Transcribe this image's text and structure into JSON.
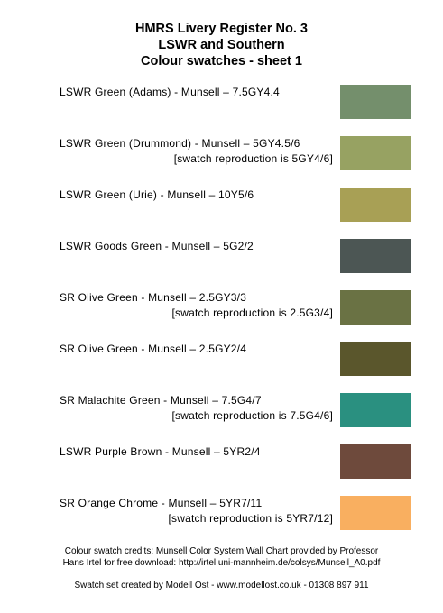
{
  "header": {
    "line1": "HMRS Livery Register No. 3",
    "line2": "LSWR and Southern",
    "line3": "Colour swatches - sheet 1"
  },
  "swatches": [
    {
      "label": "LSWR Green (Adams) -  Munsell – 7.5GY4.4",
      "note": "",
      "color": "#748F6C"
    },
    {
      "label": "LSWR Green (Drummond) -  Munsell – 5GY4.5/6",
      "note": "[swatch reproduction is 5GY4/6]",
      "color": "#97A262"
    },
    {
      "label": "LSWR Green (Urie) -  Munsell – 10Y5/6",
      "note": "",
      "color": "#A8A055"
    },
    {
      "label": "LSWR Goods Green  -  Munsell – 5G2/2",
      "note": "",
      "color": "#4C5654"
    },
    {
      "label": "SR Olive Green -  Munsell – 2.5GY3/3",
      "note": "[swatch reproduction is 2.5G3/4]",
      "color": "#6A7244"
    },
    {
      "label": "SR Olive Green -  Munsell – 2.5GY2/4",
      "note": "",
      "color": "#5A562C"
    },
    {
      "label": "SR Malachite Green -  Munsell – 7.5G4/7",
      "note": "[swatch reproduction is 7.5G4/6]",
      "color": "#2A9080"
    },
    {
      "label": "LSWR Purple Brown  -  Munsell – 5YR2/4",
      "note": "",
      "color": "#6E4A3C"
    },
    {
      "label": "SR Orange Chrome  -  Munsell – 5YR7/11",
      "note": "[swatch reproduction is 5YR7/12]",
      "color": "#F9AF60"
    }
  ],
  "footer": {
    "credits_line1": "Colour swatch credits: Munsell Color System Wall Chart provided by Professor",
    "credits_line2": "Hans Irtel for free download: http://irtel.uni-mannheim.de/colsys/Munsell_A0.pdf",
    "creator": "Swatch set created by Modell Ost - www.modellost.co.uk - 01308 897 911"
  }
}
